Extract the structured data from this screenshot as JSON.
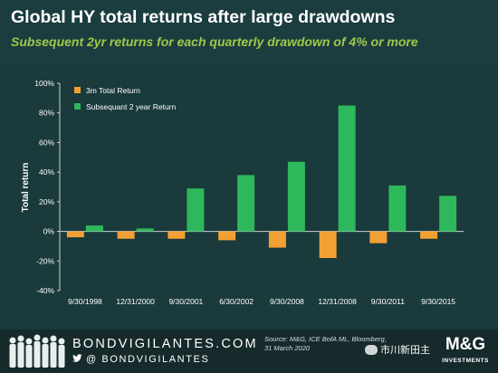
{
  "header": {
    "title": "Global HY total returns after large drawdowns",
    "subtitle": "Subsequent 2yr returns for each quarterly drawdown of 4% or more"
  },
  "chart_data": {
    "type": "bar",
    "ylabel": "Total return",
    "xlabel": "",
    "ylim": [
      -40,
      100
    ],
    "yticks": [
      -40,
      -20,
      0,
      20,
      40,
      60,
      80,
      100
    ],
    "ytick_labels": [
      "-40%",
      "-20%",
      "0%",
      "20%",
      "40%",
      "60%",
      "80%",
      "100%"
    ],
    "grid": false,
    "legend_position": "top-left",
    "categories": [
      "9/30/1998",
      "12/31/2000",
      "9/30/2001",
      "6/30/2002",
      "9/30/2008",
      "12/31/2008",
      "9/30/2011",
      "9/30/2015"
    ],
    "series": [
      {
        "name": "3m Total Return",
        "color": "#f2a033",
        "values": [
          -4,
          -5,
          -5,
          -6,
          -11,
          -18,
          -8,
          -5
        ]
      },
      {
        "name": "Subsequant 2 year Return",
        "color": "#2db85c",
        "values": [
          4,
          2,
          29,
          38,
          47,
          85,
          31,
          24
        ]
      }
    ]
  },
  "footer": {
    "brand": "BONDVIGILANTES.COM",
    "handle": "@ BONDVIGILANTES",
    "source_line1": "Source: M&G, ICE BofA ML, Bloomberg,",
    "source_line2": "31 March 2020",
    "wechat_text": "市川新田主",
    "logo_text": "M&G",
    "logo_sub": "INVESTMENTS",
    "icons": {
      "twitter": "twitter-bird-icon",
      "wechat": "wechat-icon"
    }
  }
}
